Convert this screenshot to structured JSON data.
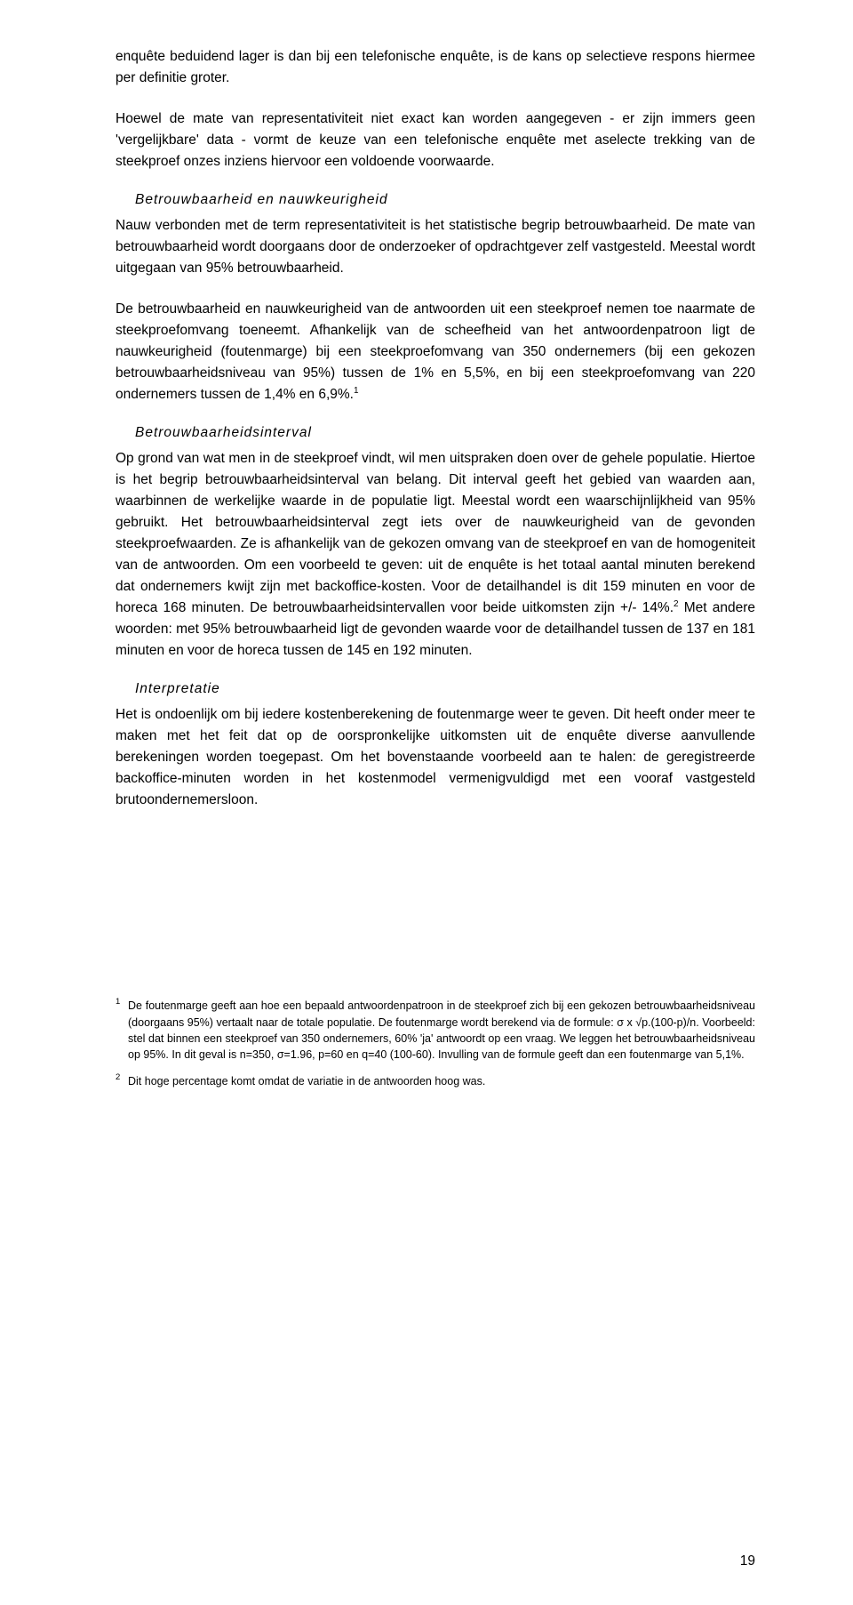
{
  "paragraphs": {
    "p1": "enquête beduidend lager is dan bij een telefonische enquête, is de kans op selectieve respons hiermee per definitie groter.",
    "p2": "Hoewel de mate van representativiteit niet exact kan worden aangegeven - er zijn immers geen 'vergelijkbare' data - vormt de keuze van een telefonische enquête met aselecte trekking van de steekproef onzes inziens hiervoor een voldoende voorwaarde.",
    "p3": "Nauw verbonden met de term representativiteit is het statistische begrip betrouwbaarheid. De mate van betrouwbaarheid wordt doorgaans door de onderzoeker of opdrachtgever zelf vastgesteld. Meestal wordt uitgegaan van 95% betrouwbaarheid.",
    "p4a": "De betrouwbaarheid en nauwkeurigheid van de antwoorden uit een steekproef nemen toe naarmate de steekproefomvang toeneemt. Afhankelijk van de scheefheid van het antwoordenpatroon ligt de nauwkeurigheid (foutenmarge) bij een steekproefomvang van 350 ondernemers (bij een gekozen betrouwbaarheidsniveau van 95%) tussen de 1% en 5,5%, en bij een steekproefomvang van 220 ondernemers tussen de 1,4% en 6,9%.",
    "p5a": "Op grond van wat men in de steekproef vindt, wil men uitspraken doen over de gehele populatie. Hiertoe is het begrip betrouwbaarheidsinterval van belang. Dit interval geeft het gebied van waarden aan, waarbinnen de werkelijke waarde in de populatie ligt. Meestal wordt een waarschijnlijkheid van 95% gebruikt. Het betrouwbaarheidsinterval zegt iets over de nauwkeurigheid van de gevonden steekproefwaarden. Ze is afhankelijk van de gekozen omvang van de steekproef en van de homogeniteit van de antwoorden. Om een voorbeeld te geven: uit de enquête is het totaal aantal minuten berekend dat ondernemers kwijt zijn met backoffice-kosten. Voor de detailhandel is dit 159 minuten en voor de horeca 168 minuten. De betrouwbaarheidsintervallen voor beide uitkomsten zijn +/- 14%.",
    "p5b": " Met andere woorden: met 95% betrouwbaarheid ligt de gevonden waarde voor de detailhandel tussen de 137 en 181 minuten en voor de horeca tussen de 145 en 192 minuten.",
    "p6": "Het is ondoenlijk om bij iedere kostenberekening de foutenmarge weer te geven. Dit heeft onder meer te maken met het feit dat op de oorspronkelijke uitkomsten uit de enquête diverse aanvullende berekeningen worden toegepast. Om het bovenstaande voorbeeld aan te halen: de geregistreerde backoffice-minuten worden in het kostenmodel vermenigvuldigd met een vooraf vastgesteld brutoondernemersloon."
  },
  "subheads": {
    "s1": "Betrouwbaarheid en nauwkeurigheid",
    "s2": "Betrouwbaarheidsinterval",
    "s3": "Interpretatie"
  },
  "footnotes": {
    "f1_marker": "1",
    "f1": "De foutenmarge geeft aan hoe een bepaald antwoordenpatroon in de steekproef zich bij een gekozen betrouwbaarheidsniveau (doorgaans 95%) vertaalt naar de totale populatie. De foutenmarge wordt berekend via de formule: σ x √p.(100-p)/n. Voorbeeld: stel dat binnen een steekproef van 350 ondernemers, 60% 'ja' antwoordt op een vraag. We leggen het betrouwbaarheidsniveau op 95%. In dit geval is n=350, σ=1.96, p=60 en q=40 (100-60). Invulling van de formule geeft dan een foutenmarge van 5,1%.",
    "f2_marker": "2",
    "f2": "Dit hoge percentage komt omdat de variatie in de antwoorden hoog was."
  },
  "refs": {
    "r1": "1",
    "r2": "2"
  },
  "page_number": "19"
}
